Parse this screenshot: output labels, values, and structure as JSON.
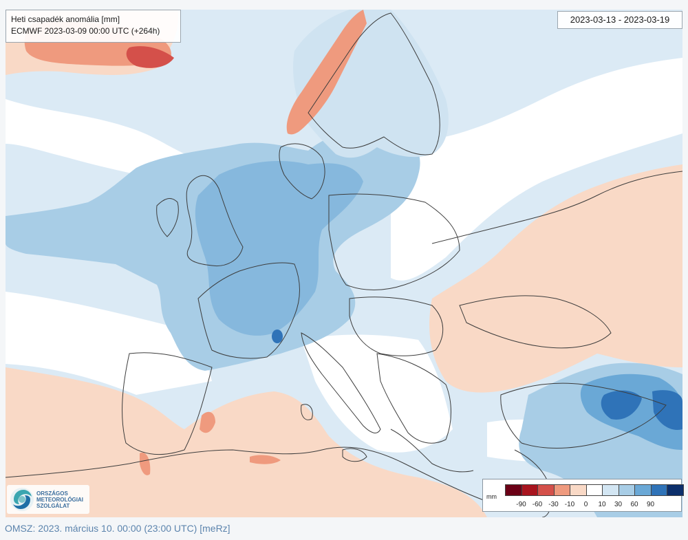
{
  "title": {
    "line1": "Heti csapadék anomália [mm]",
    "line2": "ECMWF 2023-03-09 00:00 UTC (+264h)"
  },
  "date_range": "2023-03-13 - 2023-03-19",
  "legend": {
    "unit": "mm",
    "labels": [
      "-90",
      "-60",
      "-30",
      "-10",
      "0",
      "10",
      "30",
      "60",
      "90"
    ],
    "colors": [
      "#6b0016",
      "#a8141e",
      "#d4504a",
      "#ef9a7e",
      "#f9d9c6",
      "#ffffff",
      "#d3e6f3",
      "#a8cde6",
      "#6aa8d6",
      "#2f73b8",
      "#0c2f6b"
    ]
  },
  "logo": {
    "lines": [
      "ORSZÁGOS",
      "METEOROLÓGIAI",
      "SZOLGÁLAT"
    ]
  },
  "footer": "OMSZ: 2023. március 10. 00:00 (23:00  UTC)  [meRz]"
}
